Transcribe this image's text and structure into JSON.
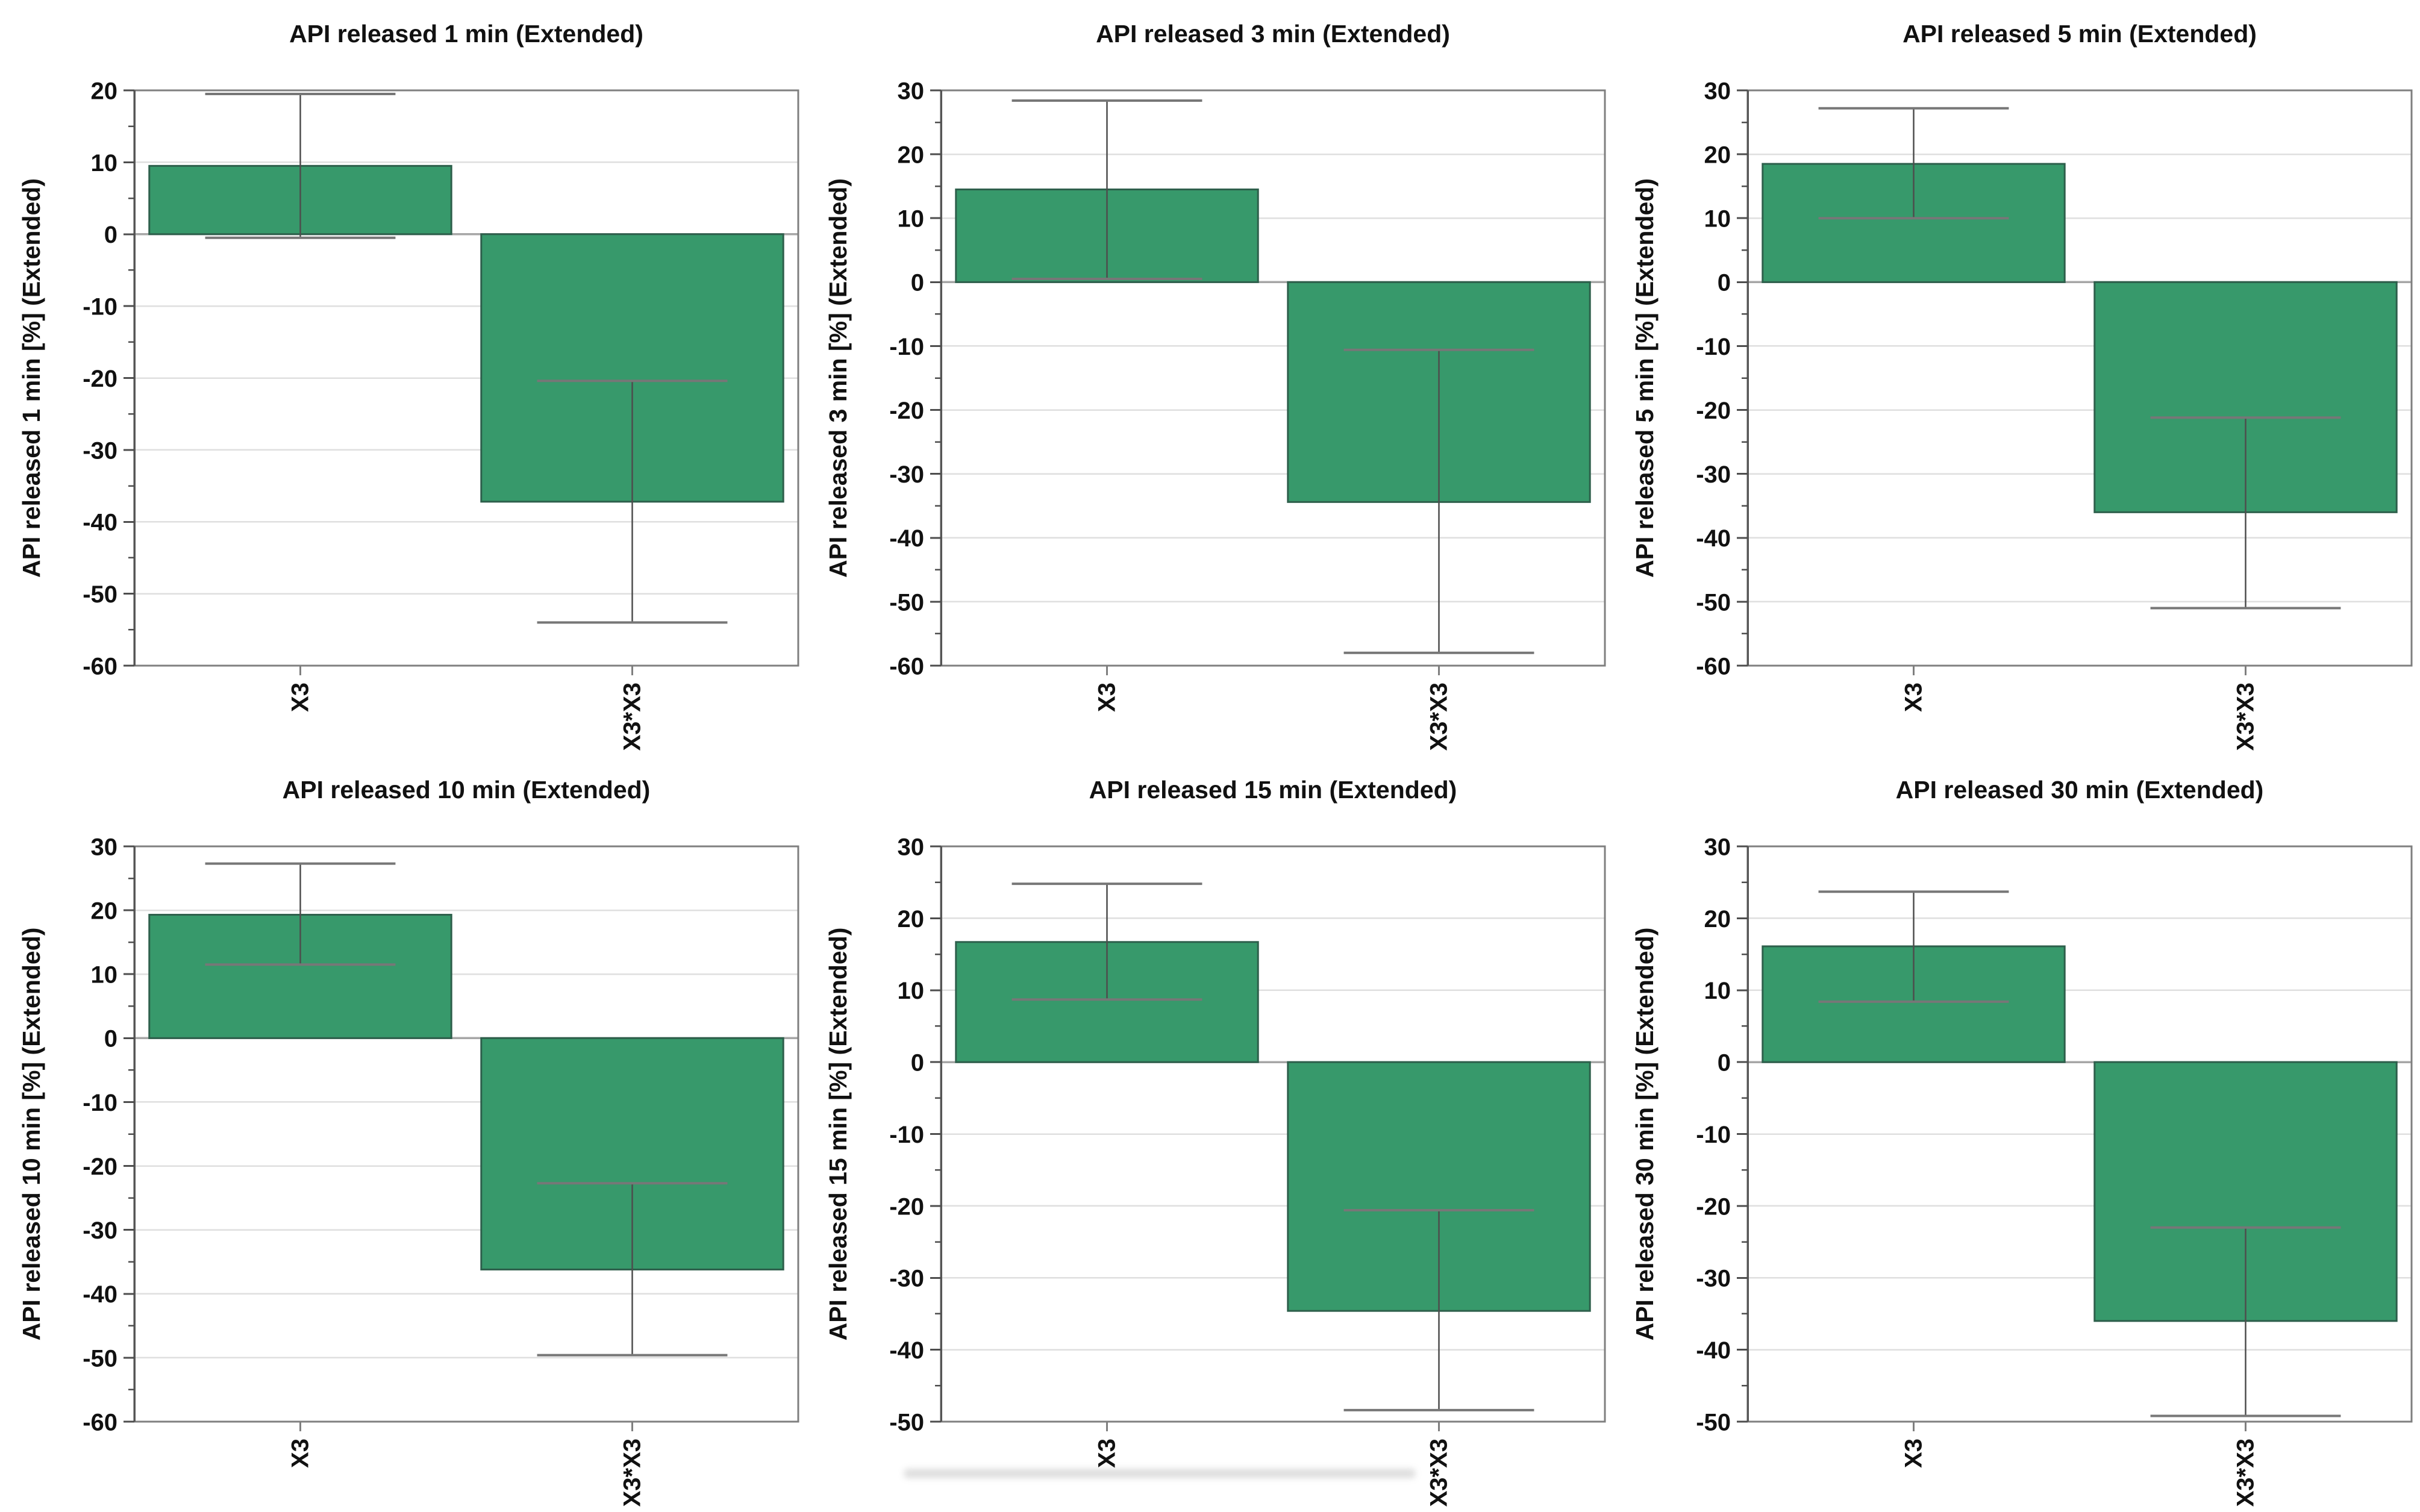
{
  "page": {
    "background": "#ffffff"
  },
  "style": {
    "bar_fill": "#37996b",
    "bar_stroke": "#2d5f4b",
    "grid_color": "#dfdfdf",
    "zero_line_color": "#a6a6a6",
    "frame_color": "#7f7f7f",
    "axis_color": "#565656",
    "tick_color": "#4d4d4d",
    "text_color": "#111111",
    "error_line_color": "#4d4d4d",
    "error_cap_color": "#777777"
  },
  "chart_data": [
    {
      "type": "bar",
      "id": "1-min",
      "title": "API released 1 min (Extended)",
      "ylabel": "API released 1 min [%] (Extended)",
      "xlabel": "",
      "categories": [
        "X3",
        "X3*X3"
      ],
      "values": [
        9.5,
        -37.2
      ],
      "error_high": [
        19.5,
        -20.4
      ],
      "error_low": [
        -0.5,
        -54.0
      ],
      "ylim": [
        -60,
        20
      ],
      "ytick_step": 10,
      "yminor_step": 5,
      "grid": true,
      "legend": "none"
    },
    {
      "type": "bar",
      "id": "3-min",
      "title": "API released 3 min (Extended)",
      "ylabel": "API released 3 min [%] (Extended)",
      "xlabel": "",
      "categories": [
        "X3",
        "X3*X3"
      ],
      "values": [
        14.5,
        -34.4
      ],
      "error_high": [
        28.4,
        -10.6
      ],
      "error_low": [
        0.5,
        -58.0
      ],
      "ylim": [
        -60,
        30
      ],
      "ytick_step": 10,
      "yminor_step": 5,
      "grid": true,
      "legend": "none"
    },
    {
      "type": "bar",
      "id": "5-min",
      "title": "API released 5 min (Extended)",
      "ylabel": "API released 5 min [%] (Extended)",
      "xlabel": "",
      "categories": [
        "X3",
        "X3*X3"
      ],
      "values": [
        18.5,
        -36.0
      ],
      "error_high": [
        27.2,
        -21.2
      ],
      "error_low": [
        10.0,
        -51.0
      ],
      "ylim": [
        -60,
        30
      ],
      "ytick_step": 10,
      "yminor_step": 5,
      "grid": true,
      "legend": "none"
    },
    {
      "type": "bar",
      "id": "10-min",
      "title": "API released 10 min (Extended)",
      "ylabel": "API released 10 min [%] (Extended)",
      "xlabel": "",
      "categories": [
        "X3",
        "X3*X3"
      ],
      "values": [
        19.3,
        -36.2
      ],
      "error_high": [
        27.3,
        -22.7
      ],
      "error_low": [
        11.5,
        -49.6
      ],
      "ylim": [
        -60,
        30
      ],
      "ytick_step": 10,
      "yminor_step": 5,
      "grid": true,
      "legend": "none"
    },
    {
      "type": "bar",
      "id": "15-min",
      "title": "API released 15 min (Extended)",
      "ylabel": "API released 15 min [%] (Extended)",
      "xlabel": "",
      "categories": [
        "X3",
        "X3*X3"
      ],
      "values": [
        16.7,
        -34.6
      ],
      "error_high": [
        24.8,
        -20.6
      ],
      "error_low": [
        8.7,
        -48.4
      ],
      "ylim": [
        -50,
        30
      ],
      "ytick_step": 10,
      "yminor_step": 5,
      "grid": true,
      "legend": "none"
    },
    {
      "type": "bar",
      "id": "30-min",
      "title": "API released 30 min (Extended)",
      "ylabel": "API released 30 min [%] (Extended)",
      "xlabel": "",
      "categories": [
        "X3",
        "X3*X3"
      ],
      "values": [
        16.1,
        -36.0
      ],
      "error_high": [
        23.7,
        -23.0
      ],
      "error_low": [
        8.4,
        -49.2
      ],
      "ylim": [
        -50,
        30
      ],
      "ytick_step": 10,
      "yminor_step": 5,
      "grid": true,
      "legend": "none"
    }
  ]
}
